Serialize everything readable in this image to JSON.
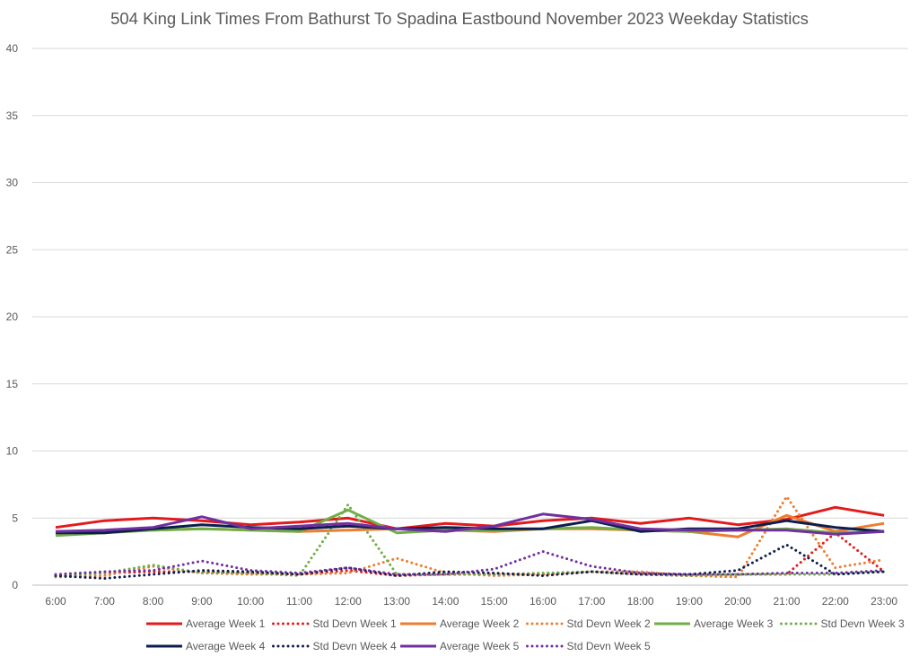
{
  "chart_data": {
    "type": "line",
    "title": "504 King Link Times From Bathurst To Spadina Eastbound November 2023 Weekday Statistics",
    "xlabel": "",
    "ylabel": "",
    "ylim": [
      0,
      40
    ],
    "yticks": [
      0,
      5,
      10,
      15,
      20,
      25,
      30,
      35,
      40
    ],
    "grid": true,
    "legend_position": "bottom",
    "categories": [
      "6:00",
      "7:00",
      "8:00",
      "9:00",
      "10:00",
      "11:00",
      "12:00",
      "13:00",
      "14:00",
      "15:00",
      "16:00",
      "17:00",
      "18:00",
      "19:00",
      "20:00",
      "21:00",
      "22:00",
      "23:00"
    ],
    "series": [
      {
        "name": "Average Week 1",
        "style": "solid",
        "color": "#e31a1c",
        "values": [
          4.3,
          4.8,
          5.0,
          4.8,
          4.5,
          4.7,
          5.0,
          4.2,
          4.6,
          4.4,
          4.8,
          5.0,
          4.6,
          5.0,
          4.5,
          4.9,
          5.8,
          5.2
        ]
      },
      {
        "name": "Std Devn Week 1",
        "style": "dotted",
        "color": "#e31a1c",
        "values": [
          0.7,
          0.9,
          1.0,
          1.0,
          0.9,
          0.8,
          1.1,
          0.7,
          0.8,
          0.8,
          0.8,
          1.0,
          0.8,
          0.7,
          0.8,
          0.8,
          3.9,
          1.0
        ]
      },
      {
        "name": "Average Week 2",
        "style": "solid",
        "color": "#ed7d31",
        "values": [
          4.0,
          4.0,
          4.1,
          4.2,
          4.1,
          4.0,
          4.1,
          4.2,
          4.1,
          4.0,
          4.2,
          4.2,
          4.1,
          4.0,
          3.6,
          5.2,
          4.0,
          4.6
        ]
      },
      {
        "name": "Std Devn Week 2",
        "style": "dotted",
        "color": "#ed7d31",
        "values": [
          0.6,
          0.7,
          1.4,
          0.9,
          0.8,
          0.8,
          0.9,
          2.0,
          0.9,
          0.7,
          0.8,
          1.0,
          1.0,
          0.7,
          0.6,
          6.6,
          1.3,
          1.9
        ]
      },
      {
        "name": "Average Week 3",
        "style": "solid",
        "color": "#70ad47",
        "values": [
          3.7,
          3.9,
          4.1,
          4.2,
          4.1,
          4.0,
          5.6,
          3.9,
          4.1,
          4.1,
          4.2,
          4.3,
          4.1,
          4.0,
          4.1,
          4.2,
          3.9,
          4.0
        ]
      },
      {
        "name": "Std Devn Week 3",
        "style": "dotted",
        "color": "#70ad47",
        "values": [
          0.7,
          0.9,
          1.5,
          0.9,
          0.9,
          0.7,
          6.0,
          0.8,
          0.8,
          0.8,
          0.9,
          1.0,
          0.8,
          0.7,
          0.8,
          0.8,
          0.8,
          1.0
        ]
      },
      {
        "name": "Average Week 4",
        "style": "solid",
        "color": "#0d1e4e",
        "values": [
          3.9,
          3.9,
          4.2,
          4.5,
          4.3,
          4.2,
          4.4,
          4.2,
          4.3,
          4.2,
          4.2,
          4.8,
          4.0,
          4.2,
          4.2,
          4.8,
          4.3,
          4.0
        ]
      },
      {
        "name": "Std Devn Week 4",
        "style": "dotted",
        "color": "#0d1e4e",
        "values": [
          0.7,
          0.5,
          0.8,
          1.1,
          1.0,
          0.8,
          1.3,
          0.7,
          1.0,
          0.9,
          0.7,
          1.0,
          0.8,
          0.8,
          1.1,
          3.0,
          0.8,
          1.0
        ]
      },
      {
        "name": "Average Week 5",
        "style": "solid",
        "color": "#7030a0",
        "values": [
          4.0,
          4.1,
          4.3,
          5.1,
          4.2,
          4.4,
          4.6,
          4.2,
          4.0,
          4.4,
          5.3,
          4.9,
          4.2,
          4.1,
          4.1,
          4.1,
          3.8,
          4.0
        ]
      },
      {
        "name": "Std Devn Week 5",
        "style": "dotted",
        "color": "#7030a0",
        "values": [
          0.8,
          1.0,
          1.1,
          1.8,
          1.1,
          0.9,
          1.3,
          0.8,
          0.8,
          1.2,
          2.5,
          1.4,
          0.9,
          0.8,
          0.8,
          0.9,
          0.9,
          1.1
        ]
      }
    ]
  }
}
